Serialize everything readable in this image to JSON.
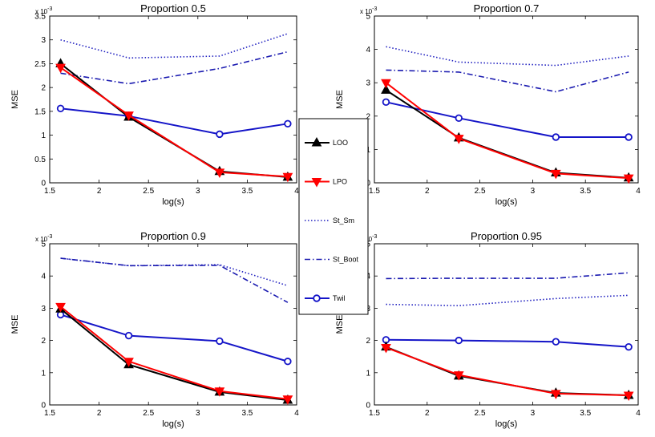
{
  "chart_data": {
    "type": "line",
    "legend": {
      "placement": "center",
      "entries": [
        {
          "key": "loo",
          "label": "LOO"
        },
        {
          "key": "lpo",
          "label": "LPO"
        },
        {
          "key": "st_sm",
          "label": "St_Sm"
        },
        {
          "key": "st_boot",
          "label": "St_Boot"
        },
        {
          "key": "twil",
          "label": "Twil"
        }
      ]
    },
    "series_styles": {
      "loo": {
        "color": "#000000",
        "line": "solid",
        "marker": "triangle-up"
      },
      "lpo": {
        "color": "#ff0000",
        "line": "solid",
        "marker": "triangle-down"
      },
      "st_sm": {
        "color": "#2020c0",
        "line": "dotted",
        "marker": "none"
      },
      "st_boot": {
        "color": "#1a1ab0",
        "line": "dashdot",
        "marker": "none"
      },
      "twil": {
        "color": "#1515c8",
        "line": "solid",
        "marker": "circle"
      }
    },
    "panels": [
      {
        "title": "Proportion 0.5",
        "xlabel": "log(s)",
        "ylabel": "MSE",
        "y_exponent": "x 10^-3",
        "xlim": [
          1.5,
          4
        ],
        "ylim": [
          0,
          3.5
        ],
        "xticks": [
          "1.5",
          "2",
          "2.5",
          "3",
          "3.5",
          "4"
        ],
        "yticks": [
          "0",
          "0.5",
          "1",
          "1.5",
          "2",
          "2.5",
          "3",
          "3.5"
        ],
        "x": [
          1.61,
          2.3,
          3.22,
          3.91
        ],
        "series": [
          {
            "key": "st_sm",
            "values": [
              3.0,
              2.62,
              2.66,
              3.13
            ]
          },
          {
            "key": "st_boot",
            "values": [
              2.3,
              2.08,
              2.4,
              2.75
            ]
          },
          {
            "key": "twil",
            "values": [
              1.56,
              1.4,
              1.02,
              1.24
            ]
          },
          {
            "key": "loo",
            "values": [
              2.5,
              1.38,
              0.24,
              0.12
            ]
          },
          {
            "key": "lpo",
            "values": [
              2.42,
              1.42,
              0.22,
              0.13
            ]
          }
        ]
      },
      {
        "title": "Proportion 0.7",
        "xlabel": "log(s)",
        "ylabel": "MSE",
        "y_exponent": "x 10^-3",
        "xlim": [
          1.5,
          4
        ],
        "ylim": [
          0,
          5
        ],
        "xticks": [
          "1.5",
          "2",
          "2.5",
          "3",
          "3.5",
          "4"
        ],
        "yticks": [
          "0",
          "1",
          "2",
          "3",
          "4",
          "5"
        ],
        "x": [
          1.61,
          2.3,
          3.22,
          3.91
        ],
        "series": [
          {
            "key": "st_sm",
            "values": [
              4.08,
              3.62,
              3.52,
              3.8
            ]
          },
          {
            "key": "st_boot",
            "values": [
              3.38,
              3.32,
              2.73,
              3.32
            ]
          },
          {
            "key": "twil",
            "values": [
              2.42,
              1.94,
              1.37,
              1.37
            ]
          },
          {
            "key": "loo",
            "values": [
              2.78,
              1.35,
              0.3,
              0.15
            ]
          },
          {
            "key": "lpo",
            "values": [
              3.0,
              1.33,
              0.28,
              0.14
            ]
          }
        ]
      },
      {
        "title": "Proportion 0.9",
        "xlabel": "log(s)",
        "ylabel": "MSE",
        "y_exponent": "x 10^-3",
        "xlim": [
          1.5,
          4
        ],
        "ylim": [
          0,
          5
        ],
        "xticks": [
          "1.5",
          "2",
          "2.5",
          "3",
          "3.5",
          "4"
        ],
        "yticks": [
          "0",
          "1",
          "2",
          "3",
          "4",
          "5"
        ],
        "x": [
          1.61,
          2.3,
          3.22,
          3.91
        ],
        "series": [
          {
            "key": "st_sm",
            "values": [
              4.55,
              4.32,
              4.35,
              3.7
            ]
          },
          {
            "key": "st_boot",
            "values": [
              4.55,
              4.32,
              4.33,
              3.18
            ]
          },
          {
            "key": "twil",
            "values": [
              2.8,
              2.15,
              1.98,
              1.35
            ]
          },
          {
            "key": "loo",
            "values": [
              2.98,
              1.25,
              0.4,
              0.15
            ]
          },
          {
            "key": "lpo",
            "values": [
              3.05,
              1.35,
              0.43,
              0.18
            ]
          }
        ]
      },
      {
        "title": "Proportion 0.95",
        "xlabel": "log(s)",
        "ylabel": "MSE",
        "y_exponent": "x 10^-3",
        "xlim": [
          1.5,
          4
        ],
        "ylim": [
          0,
          5
        ],
        "xticks": [
          "1.5",
          "2",
          "2.5",
          "3",
          "3.5",
          "4"
        ],
        "yticks": [
          "0",
          "1",
          "2",
          "3",
          "4",
          "5"
        ],
        "x": [
          1.61,
          2.3,
          3.22,
          3.91
        ],
        "series": [
          {
            "key": "st_sm",
            "values": [
              3.12,
              3.08,
              3.3,
              3.4
            ]
          },
          {
            "key": "st_boot",
            "values": [
              3.92,
              3.93,
              3.93,
              4.1
            ]
          },
          {
            "key": "twil",
            "values": [
              2.02,
              2.0,
              1.96,
              1.8
            ]
          },
          {
            "key": "loo",
            "values": [
              1.8,
              0.9,
              0.37,
              0.3
            ]
          },
          {
            "key": "lpo",
            "values": [
              1.78,
              0.93,
              0.35,
              0.3
            ]
          }
        ]
      }
    ]
  }
}
